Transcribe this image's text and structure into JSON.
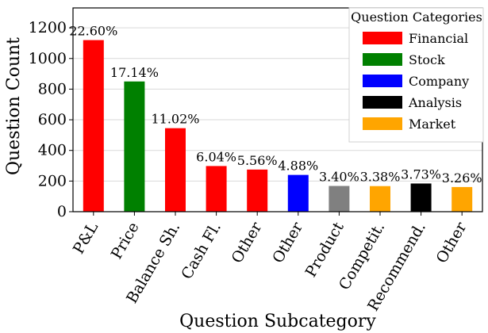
{
  "chart_data": {
    "type": "bar",
    "xlabel": "Question Subcategory",
    "ylabel": "Question Count",
    "ylim": [
      0,
      1330
    ],
    "yticks": [
      0,
      200,
      400,
      600,
      800,
      1000,
      1200
    ],
    "grid": true,
    "categories": [
      "P&L",
      "Price",
      "Balance Sh.",
      "Cash Fl.",
      "Other",
      "Other",
      "Product",
      "Competit.",
      "Recommend.",
      "Other"
    ],
    "values": [
      1120,
      850,
      545,
      298,
      275,
      240,
      168,
      167,
      184,
      161
    ],
    "labels": [
      "22.60%",
      "17.14%",
      "11.02%",
      "6.04%",
      "5.56%",
      "4.88%",
      "3.40%",
      "3.38%",
      "3.73%",
      "3.26%"
    ],
    "bar_colors": [
      "#ff0000",
      "#008000",
      "#ff0000",
      "#ff0000",
      "#ff0000",
      "#0000ff",
      "#808080",
      "#ffa500",
      "#000000",
      "#ffa500"
    ],
    "legend": {
      "title": "Question Categories",
      "position": "top-right",
      "entries": [
        {
          "name": "Financial",
          "color": "#ff0000"
        },
        {
          "name": "Stock",
          "color": "#008000"
        },
        {
          "name": "Company",
          "color": "#0000ff"
        },
        {
          "name": "Analysis",
          "color": "#000000"
        },
        {
          "name": "Market",
          "color": "#ffa500"
        }
      ]
    }
  }
}
